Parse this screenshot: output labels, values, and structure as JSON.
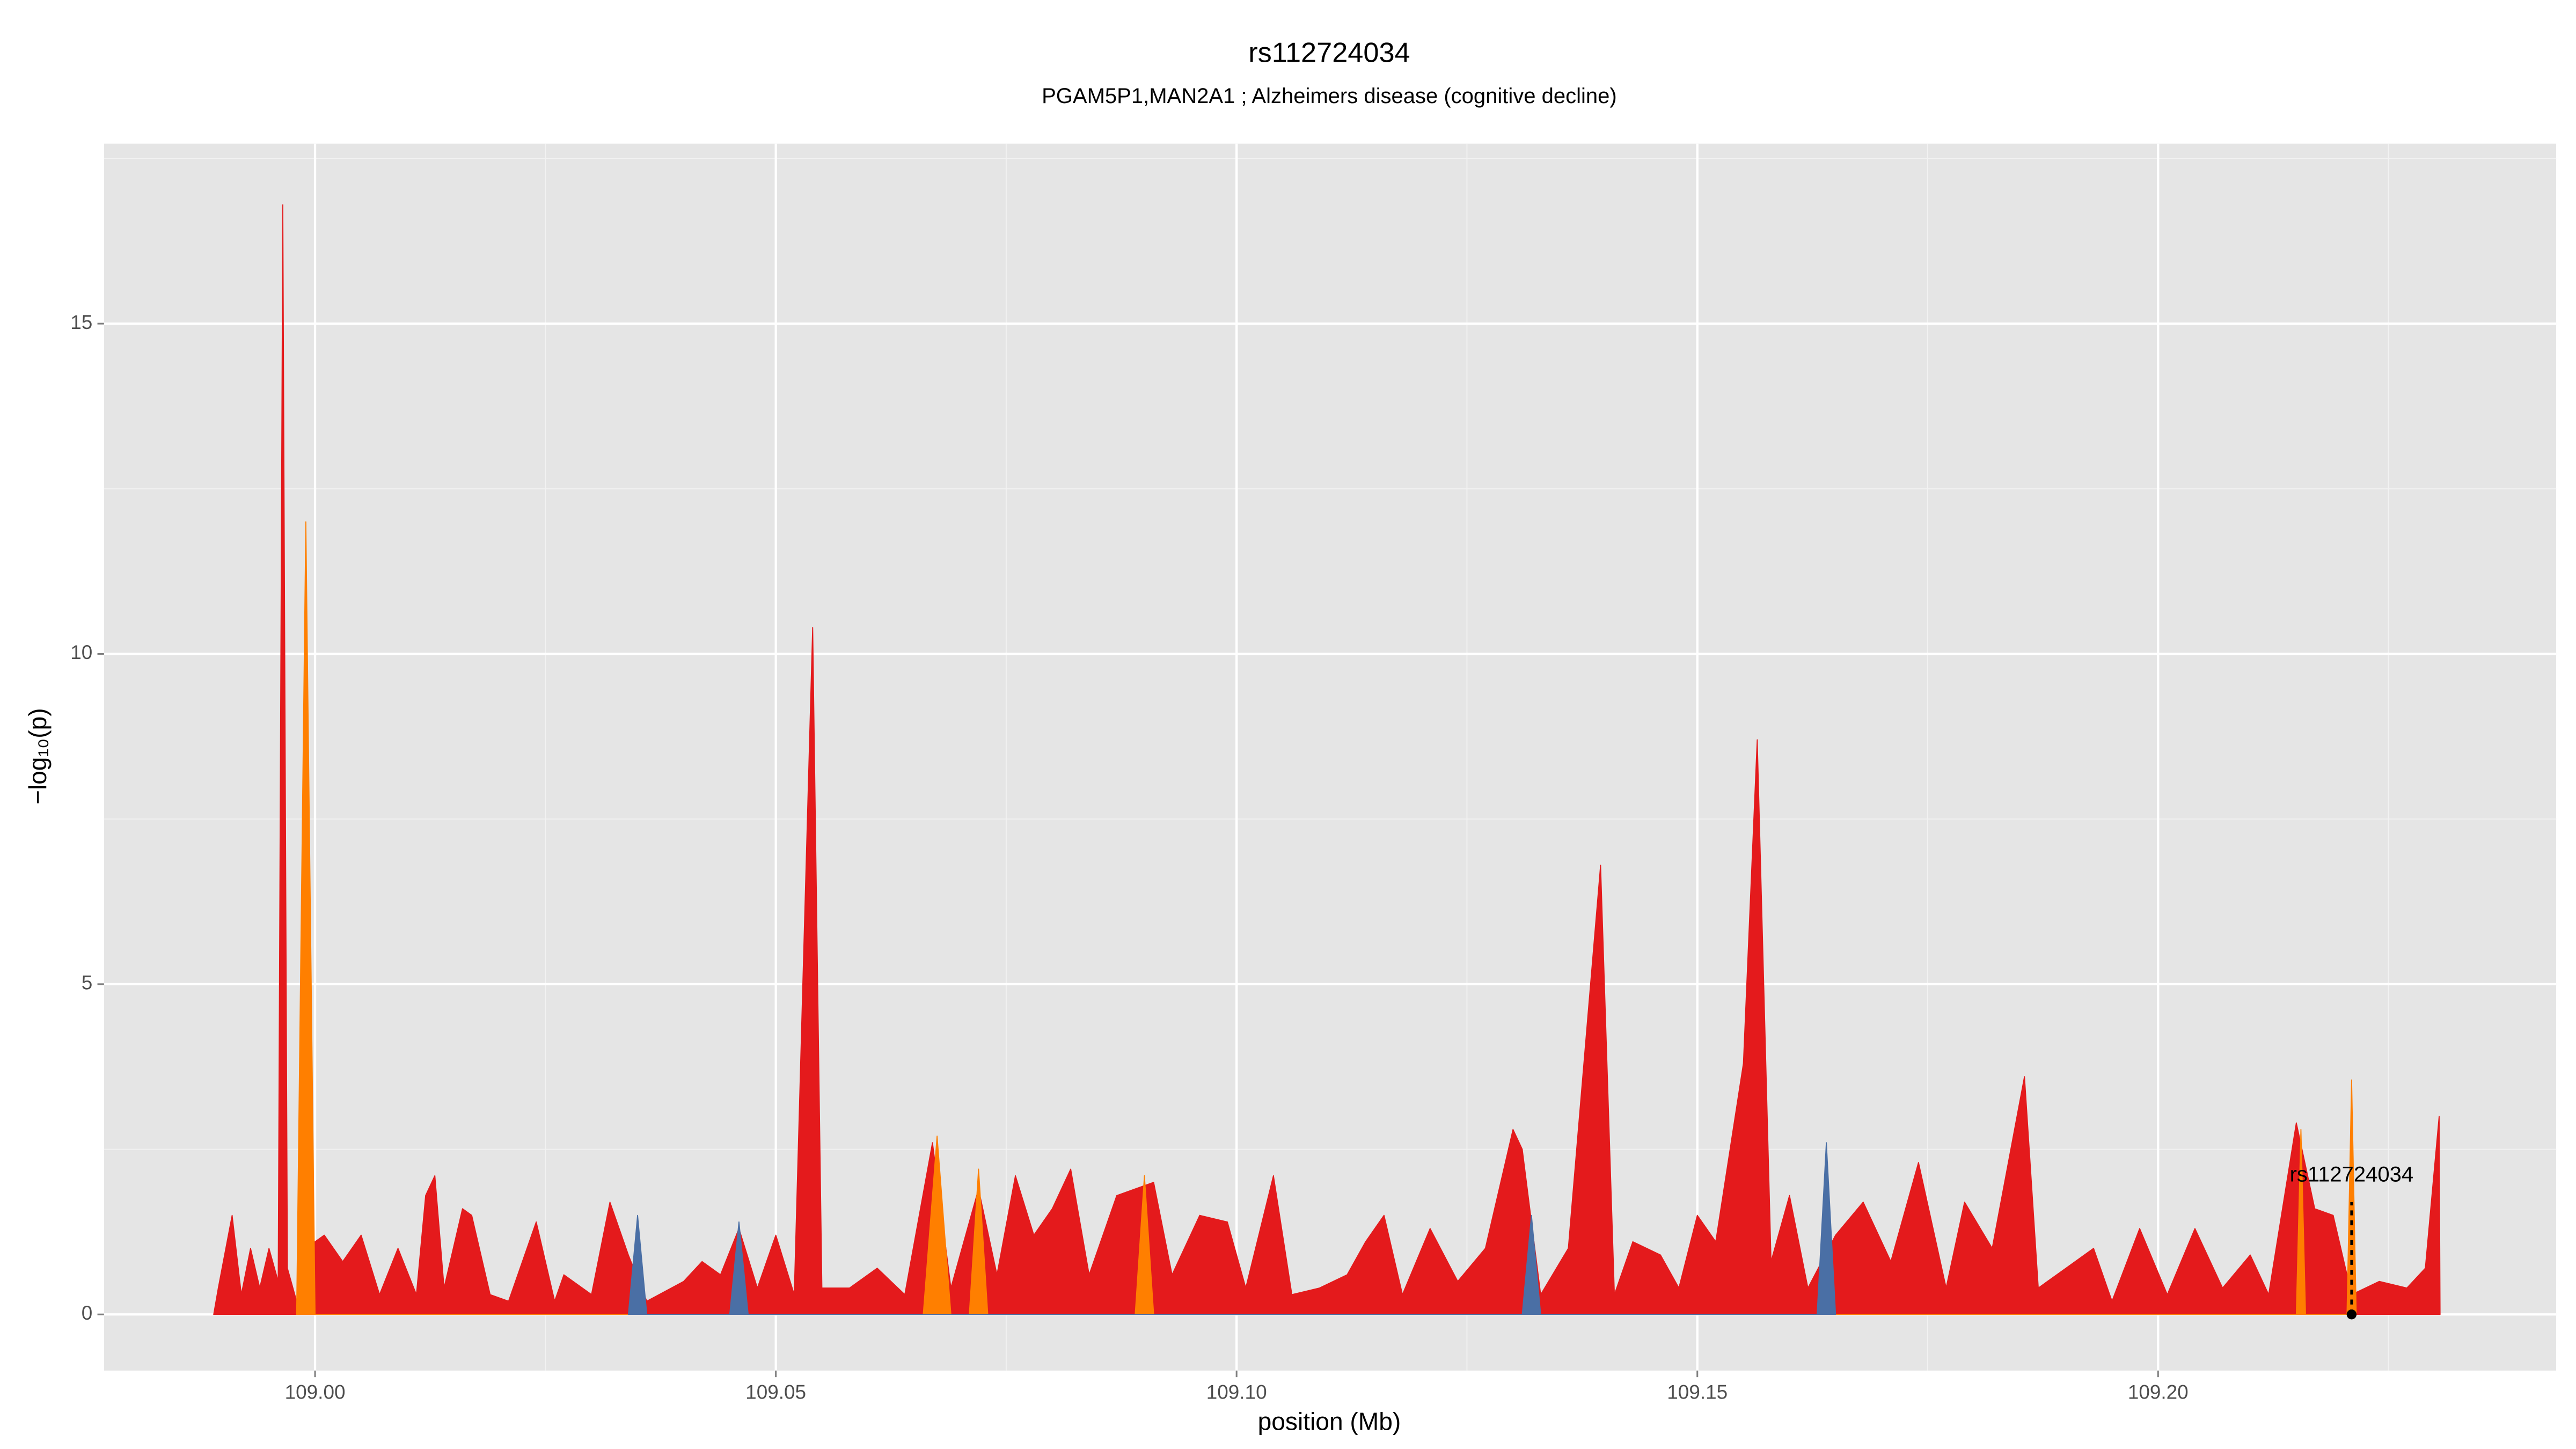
{
  "chart_data": {
    "type": "area",
    "title": "rs112724034",
    "subtitle": "PGAM5P1,MAN2A1 ; Alzheimers disease (cognitive decline)",
    "xlabel": "position (Mb)",
    "ylabel": "−log₁₀(p)",
    "xlim": [
      108.9771,
      109.2432
    ],
    "ylim": [
      -0.85,
      17.725
    ],
    "xticks": [
      {
        "value": 109.0,
        "label": "109.00"
      },
      {
        "value": 109.05,
        "label": "109.05"
      },
      {
        "value": 109.1,
        "label": "109.10"
      },
      {
        "value": 109.15,
        "label": "109.15"
      },
      {
        "value": 109.2,
        "label": "109.20"
      }
    ],
    "yticks": [
      0,
      5,
      10,
      15
    ],
    "grid": true,
    "minor_grid": true,
    "series": [
      {
        "color": "#e41a1c",
        "x": [
          108.989,
          108.9895,
          108.991,
          108.992,
          108.993,
          108.994,
          108.995,
          108.996,
          108.9965,
          108.997,
          108.998,
          108.999,
          109.001,
          109.003,
          109.005,
          109.007,
          109.009,
          109.011,
          109.012,
          109.013,
          109.014,
          109.016,
          109.017,
          109.019,
          109.021,
          109.024,
          109.026,
          109.027,
          109.03,
          109.032,
          109.034,
          109.036,
          109.04,
          109.042,
          109.044,
          109.046,
          109.048,
          109.05,
          109.052,
          109.054,
          109.055,
          109.058,
          109.061,
          109.064,
          109.067,
          109.069,
          109.072,
          109.074,
          109.076,
          109.078,
          109.08,
          109.082,
          109.084,
          109.087,
          109.089,
          109.091,
          109.093,
          109.096,
          109.099,
          109.101,
          109.104,
          109.106,
          109.109,
          109.112,
          109.114,
          109.116,
          109.118,
          109.121,
          109.124,
          109.127,
          109.13,
          109.131,
          109.133,
          109.136,
          109.1395,
          109.141,
          109.143,
          109.146,
          109.148,
          109.15,
          109.152,
          109.155,
          109.1565,
          109.158,
          109.16,
          109.162,
          109.165,
          109.168,
          109.171,
          109.174,
          109.177,
          109.179,
          109.182,
          109.1855,
          109.187,
          109.19,
          109.193,
          109.195,
          109.198,
          109.201,
          109.204,
          109.207,
          109.21,
          109.212,
          109.215,
          109.217,
          109.219,
          109.221,
          109.224,
          109.227,
          109.229,
          109.2305,
          109.2306
        ],
        "values": [
          0,
          0.4,
          1.5,
          0.3,
          1.0,
          0.4,
          1.0,
          0.5,
          16.8,
          0.7,
          0.2,
          1.0,
          1.2,
          0.8,
          1.2,
          0.3,
          1.0,
          0.3,
          1.8,
          2.1,
          0.4,
          1.6,
          1.5,
          0.3,
          0.2,
          1.4,
          0.2,
          0.6,
          0.3,
          1.7,
          0.9,
          0.2,
          0.5,
          0.8,
          0.6,
          1.3,
          0.4,
          1.2,
          0.3,
          10.4,
          0.4,
          0.4,
          0.7,
          0.3,
          2.6,
          0.4,
          1.9,
          0.6,
          2.1,
          1.2,
          1.6,
          2.2,
          0.6,
          1.8,
          1.9,
          2.0,
          0.6,
          1.5,
          1.4,
          0.4,
          2.1,
          0.3,
          0.4,
          0.6,
          1.1,
          1.5,
          0.3,
          1.3,
          0.5,
          1.0,
          2.8,
          2.5,
          0.3,
          1.0,
          6.8,
          0.3,
          1.1,
          0.9,
          0.4,
          1.5,
          1.1,
          3.8,
          8.7,
          0.8,
          1.8,
          0.4,
          1.2,
          1.7,
          0.8,
          2.3,
          0.4,
          1.7,
          1.0,
          3.6,
          0.4,
          0.7,
          1.0,
          0.2,
          1.3,
          0.3,
          1.3,
          0.4,
          0.9,
          0.3,
          2.9,
          1.6,
          1.5,
          0.3,
          0.5,
          0.4,
          0.7,
          3.0,
          0
        ]
      },
      {
        "color": "#ff7f00",
        "x": [
          108.998,
          108.999,
          109.0,
          109.066,
          109.0675,
          109.069,
          109.071,
          109.072,
          109.073,
          109.089,
          109.09,
          109.091,
          109.215,
          109.2155,
          109.216,
          109.2205,
          109.221,
          109.2215
        ],
        "values": [
          0,
          12.0,
          0,
          0,
          2.7,
          0,
          0,
          2.2,
          0,
          0,
          2.1,
          0,
          0,
          2.8,
          0,
          0,
          3.55,
          0
        ]
      },
      {
        "color": "#4a6fa5",
        "x": [
          109.034,
          109.035,
          109.036,
          109.045,
          109.046,
          109.047,
          109.131,
          109.132,
          109.133,
          109.163,
          109.164,
          109.165
        ],
        "values": [
          0,
          1.5,
          0,
          0,
          1.4,
          0,
          0,
          1.5,
          0,
          0,
          2.6,
          0
        ]
      }
    ],
    "annotation": {
      "text": "rs112724034",
      "x": 109.221,
      "y": 0
    }
  }
}
